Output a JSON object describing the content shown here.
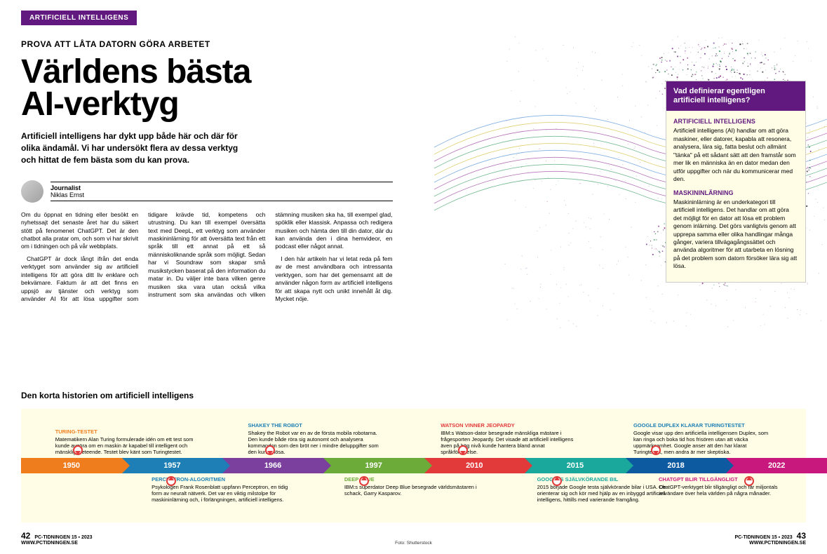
{
  "header": {
    "section": "ARTIFICIELL INTELLIGENS"
  },
  "article": {
    "kicker": "PROVA ATT LÅTA DATORN GÖRA ARBETET",
    "headline_line1": "Världens bästa",
    "headline_line2": "AI-verktyg",
    "lead": "Artificiell intelligens har dykt upp både här och där för olika ändamål. Vi har undersökt flera av dessa verktyg och hittat de fem bästa som du kan prova.",
    "byline_role": "Journalist",
    "byline_name": "Niklas Ernst",
    "body_p1": "Om du öppnat en tidning eller besökt en nyhetssajt det senaste året har du säkert stött på fenomenet ChatGPT. Det är den chatbot alla pratar om, och som vi har skrivit om i tidningen och på vår webbplats.",
    "body_p2": "ChatGPT är dock långt ifrån det enda verktyget som använder sig av artificiell intelligens för att göra ditt liv enklare och bekvämare. Faktum är att det finns en uppsjö av tjänster och verktyg som använder AI för att lösa uppgifter som tidigare krävde tid, kompetens och utrustning. Du kan till exempel översätta text med DeepL, ett verktyg som använder maskininlärning för att översätta text från ett språk till ett annat på ett så människoliknande språk som möjligt. Sedan har vi Soundraw som skapar små musikstycken baserat på den information du matar in. Du väljer inte bara vilken genre musiken ska vara utan också vilka instrument som ska användas och vilken stämning musiken ska ha, till exempel glad, spöklik eller klassisk. Anpassa och redigera musiken och hämta den till din dator, där du kan använda den i dina hemvideor, en podcast eller något annat.",
    "body_p3": "I den här artikeln har vi letat reda på fem av de mest användbara och intressanta verktygen, som har det gemensamt att de använder någon form av artificiell intelligens för att skapa nytt och unikt innehåll åt dig. Mycket nöje."
  },
  "sidebar": {
    "title": "Vad definierar egentligen artificiell intelligens?",
    "h1": "ARTIFICIELL INTELLIGENS",
    "p1": "Artificiell intelligens (AI) handlar om att göra maskiner, eller datorer, kapabla att resonera, analysera, lära sig, fatta beslut och allmänt \"tänka\" på ett sådant sätt att den framstår som mer lik en människa än en dator medan den utför uppgifter och när du kommunicerar med den.",
    "h2": "MASKININLÄRNING",
    "p2": "Maskininlärning är en underkategori till artificiell intelligens. Det handlar om att göra det möjligt för en dator att lösa ett problem genom inlärning. Det görs vanligtvis genom att upprepa samma eller olika handlingar många gånger, variera tillvägagångssättet och använda algoritmer för att utarbeta en lösning på det problem som datorn försöker lära sig att lösa."
  },
  "timeline": {
    "title": "Den korta historien om artificiell intelligens",
    "years": [
      "1950",
      "1957",
      "1966",
      "1997",
      "2010",
      "2015",
      "2018",
      "2022"
    ],
    "colors": [
      "#f07d1d",
      "#1d7fb5",
      "#7b3f9e",
      "#6caa3a",
      "#e23a3a",
      "#1aa89c",
      "#0e5aa0",
      "#c8177d"
    ],
    "events": [
      {
        "year": "1950",
        "pos": "above",
        "title": "TURING-TESTET",
        "color": "orange",
        "desc": "Matematikern Alan Turing formulerade idén om ett test som kunde avgöra om en maskin är kapabel till intelligent och mänskligt beteende. Testet blev känt som Turingtestet."
      },
      {
        "year": "1957",
        "pos": "below",
        "title": "PERCEPTRON-ALGORITMEN",
        "color": "blue",
        "desc": "Psykologen Frank Rosenblatt uppfann Perceptron, en tidig form av neuralt nätverk. Det var en viktig milstolpe för maskininlärning och, i förlängningen, artificiell intelligens."
      },
      {
        "year": "1966",
        "pos": "above",
        "title": "SHAKEY THE ROBOT",
        "color": "blue",
        "desc": "Shakey the Robot var en av de första mobila robotarna. Den kunde både röra sig autonomt och analysera kommandon som den bröt ner i mindre deluppgifter som den kunde lösa."
      },
      {
        "year": "1997",
        "pos": "below",
        "title": "DEEP BLUE",
        "color": "green",
        "desc": "IBM:s superdator Deep Blue besegrade världsmästaren i schack, Garry Kasparov."
      },
      {
        "year": "2010",
        "pos": "above",
        "title": "WATSON VINNER JEOPARDY",
        "color": "red",
        "desc": "IBM:s Watson-dator besegrade mänskliga mästare i frågesporten Jeopardy. Det visade att artificiell intelligens även på hög nivå kunde hantera bland annat språkförståelse."
      },
      {
        "year": "2015",
        "pos": "below",
        "title": "GOOGLES SJÄLVKÖRANDE BIL",
        "color": "teal",
        "desc": "2015 började Google testa självkörande bilar i USA. De orienterar sig och kör med hjälp av en inbyggd artificiell intelligens, hittills med varierande framgång."
      },
      {
        "year": "2018",
        "pos": "above",
        "title": "GOOGLE DUPLEX KLARAR TURINGTESTET",
        "color": "blue",
        "desc": "Google visar upp den artificiella intelligensen Duplex, som kan ringa och boka tid hos frisören utan att väcka uppmärksamhet. Google anser att den har klarat Turingtestet, men andra är mer skeptiska."
      },
      {
        "year": "2022",
        "pos": "below",
        "title": "CHATGPT BLIR TILLGÄNGLIGT",
        "color": "magenta",
        "desc": "ChatGPT-verktyget blir tillgängligt och får miljontals användare över hela världen på några månader."
      }
    ]
  },
  "footer": {
    "issue": "PC-TIDNINGEN 15 ▪ 2023",
    "url": "WWW.PCTIDNINGEN.SE",
    "page_left": "42",
    "page_right": "43",
    "photo_credit": "Foto: Shutterstock"
  },
  "art": {
    "wave_colors": [
      "#9b3fa0",
      "#3fa067",
      "#d4c03f",
      "#4f8fd4"
    ],
    "dot_colors": [
      "#61197f",
      "#2e8b57",
      "#8b2e7f",
      "#333"
    ]
  }
}
